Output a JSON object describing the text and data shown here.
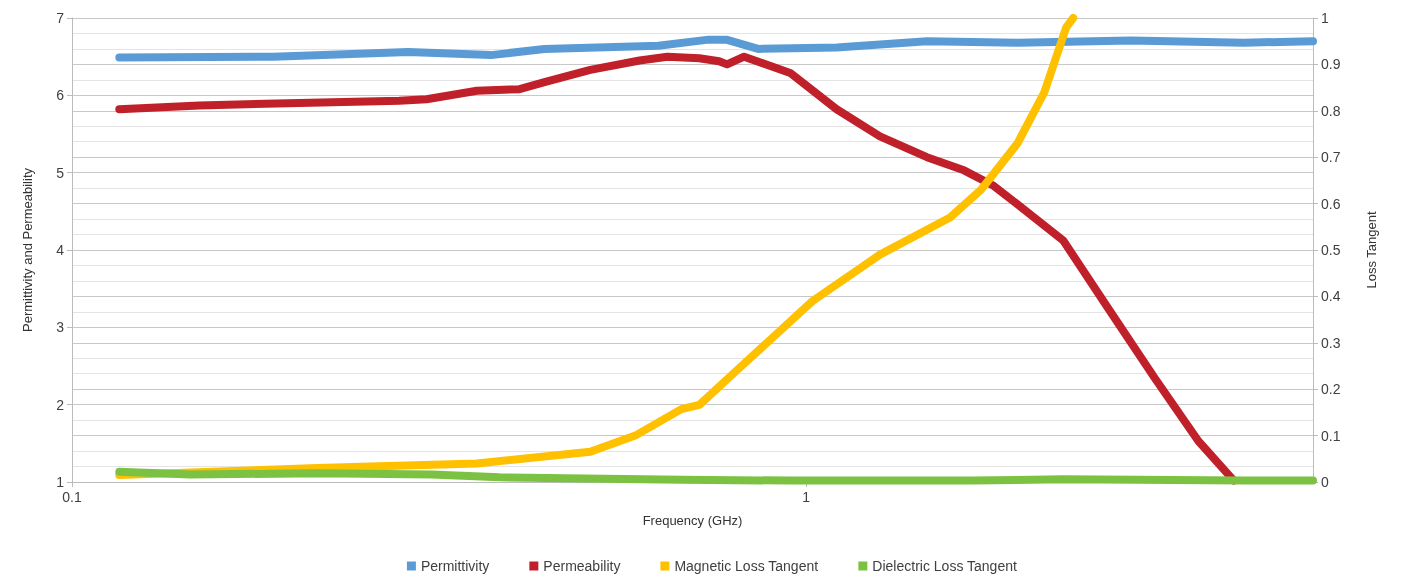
{
  "chart_data": {
    "type": "line",
    "xlabel": "Frequency (GHz)",
    "ylabel": "Permittivity and Permeability",
    "y2label": "Loss Tangent",
    "log": "x",
    "xlim": [
      0.1,
      4.9
    ],
    "xticks": [
      0.1,
      1
    ],
    "ylim": [
      1,
      7
    ],
    "yticks": [
      1,
      2,
      3,
      4,
      5,
      6,
      7
    ],
    "y2lim": [
      0,
      1
    ],
    "y2ticks": [
      0,
      0.1,
      0.2,
      0.3,
      0.4,
      0.5,
      0.6,
      0.7,
      0.8,
      0.9,
      1
    ],
    "grid": "y",
    "legend": "bottom",
    "marker": "none",
    "line_style": "solid",
    "series": [
      {
        "name": "Permittivity",
        "color": "#5b9bd5",
        "x": [
          0.116,
          0.188,
          0.287,
          0.372,
          0.44,
          0.629,
          0.736,
          0.778,
          0.86,
          1.1,
          1.46,
          1.94,
          2.77,
          3.94,
          4.9
        ],
        "values": [
          6.49,
          6.5,
          6.56,
          6.52,
          6.6,
          6.64,
          6.72,
          6.72,
          6.6,
          6.62,
          6.7,
          6.68,
          6.71,
          6.68,
          6.7
        ]
      },
      {
        "name": "Permeability",
        "color": "#c0202a",
        "x": [
          0.116,
          0.149,
          0.204,
          0.279,
          0.304,
          0.356,
          0.407,
          0.44,
          0.508,
          0.593,
          0.647,
          0.715,
          0.761,
          0.78,
          0.823,
          0.951,
          1.1,
          1.26,
          1.46,
          1.64,
          1.8,
          1.94,
          2.24,
          2.58,
          2.98,
          3.42,
          3.82
        ],
        "values": [
          5.82,
          5.87,
          5.9,
          5.93,
          5.95,
          6.06,
          6.08,
          6.17,
          6.33,
          6.45,
          6.5,
          6.48,
          6.44,
          6.4,
          6.5,
          6.29,
          5.82,
          5.47,
          5.2,
          5.03,
          4.83,
          4.59,
          4.12,
          3.24,
          2.35,
          1.53,
          1.02
        ]
      },
      {
        "name": "Magnetic Loss Tangent",
        "color": "#ffc000",
        "axis": "y2",
        "x": [
          0.116,
          0.216,
          0.356,
          0.508,
          0.585,
          0.676,
          0.715,
          0.823,
          1.02,
          1.26,
          1.57,
          1.73,
          1.94,
          2.11,
          2.26,
          2.31
        ],
        "values": [
          0.015,
          0.03,
          0.04,
          0.065,
          0.1,
          0.157,
          0.166,
          0.255,
          0.39,
          0.49,
          0.57,
          0.63,
          0.73,
          0.84,
          0.98,
          1
        ]
      },
      {
        "name": "Dielectric Loss Tangent",
        "color": "#7cc242",
        "axis": "y2",
        "x": [
          0.116,
          0.145,
          0.216,
          0.309,
          0.382,
          0.676,
          0.951,
          1.68,
          2.24,
          3.94,
          4.9
        ],
        "values": [
          0.022,
          0.016,
          0.019,
          0.016,
          0.01,
          0.005,
          0.003,
          0.003,
          0.006,
          0.003,
          0.003
        ]
      }
    ]
  }
}
